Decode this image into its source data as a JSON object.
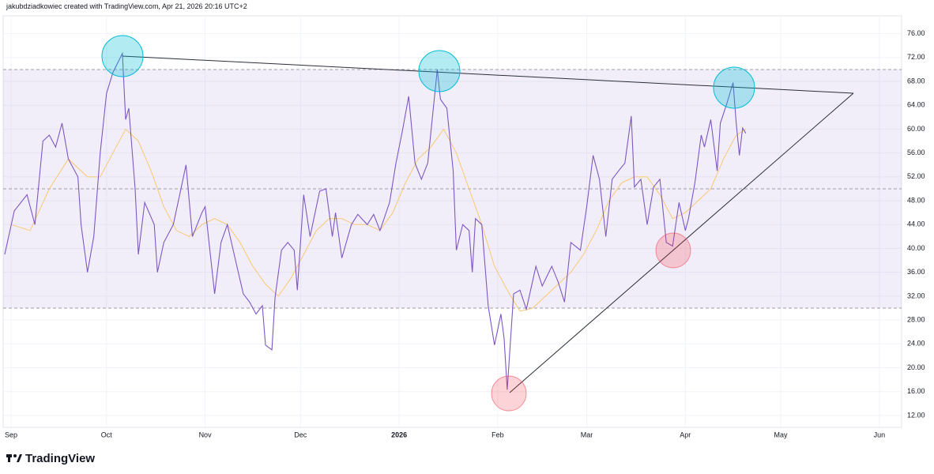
{
  "header": {
    "text": "jakubdziadkowiec created with TradingView.com, Apr 21, 2026 20:16 UTC+2"
  },
  "footer": {
    "logo": "TradingView"
  },
  "chart_data": {
    "type": "line",
    "xlim": [
      -2.5,
      280
    ],
    "ylim": [
      10,
      79
    ],
    "xticks": [
      {
        "value": 0,
        "label": "Sep"
      },
      {
        "value": 30,
        "label": "Oct"
      },
      {
        "value": 61,
        "label": "Nov"
      },
      {
        "value": 91,
        "label": "Dec"
      },
      {
        "value": 122,
        "label": "2026"
      },
      {
        "value": 153,
        "label": "Feb"
      },
      {
        "value": 181,
        "label": "Mar"
      },
      {
        "value": 212,
        "label": "Apr"
      },
      {
        "value": 242,
        "label": "May"
      },
      {
        "value": 273,
        "label": "Jun"
      }
    ],
    "yticks": [
      {
        "value": 12,
        "label": "12.00"
      },
      {
        "value": 16,
        "label": "16.00"
      },
      {
        "value": 20,
        "label": "20.00"
      },
      {
        "value": 24,
        "label": "24.00"
      },
      {
        "value": 28,
        "label": "28.00"
      },
      {
        "value": 32,
        "label": "32.00"
      },
      {
        "value": 36,
        "label": "36.00"
      },
      {
        "value": 40,
        "label": "40.00"
      },
      {
        "value": 44,
        "label": "44.00"
      },
      {
        "value": 48,
        "label": "48.00"
      },
      {
        "value": 52,
        "label": "52.00"
      },
      {
        "value": 56,
        "label": "56.00"
      },
      {
        "value": 60,
        "label": "60.00"
      },
      {
        "value": 64,
        "label": "64.00"
      },
      {
        "value": 68,
        "label": "68.00"
      },
      {
        "value": 72,
        "label": "72.00"
      },
      {
        "value": 76,
        "label": "76.00"
      }
    ],
    "levels": {
      "upper": 70,
      "middle": 50,
      "lower": 30
    },
    "band_color": "#7e57c2",
    "series": [
      {
        "color": "#7e57c2",
        "x": [
          -2,
          1,
          5,
          7.5,
          10,
          12,
          14,
          16,
          18,
          21,
          22,
          24,
          26,
          28,
          30,
          32,
          35,
          36,
          37,
          39,
          40,
          42,
          45,
          46,
          48,
          51,
          53,
          55,
          57,
          60,
          61,
          64,
          66,
          68,
          71,
          73,
          75,
          77,
          79,
          80,
          82,
          83,
          85,
          87,
          89,
          90,
          92,
          94,
          97,
          99,
          101,
          102,
          104,
          107,
          109,
          112,
          114,
          116,
          119,
          121,
          123,
          125,
          127,
          129,
          131,
          134,
          135,
          137,
          139,
          140,
          142,
          144,
          145,
          146,
          148,
          150,
          152,
          154,
          155,
          156,
          158,
          160,
          162,
          165,
          167,
          170,
          172,
          174,
          176,
          179,
          181,
          183,
          185,
          187,
          189,
          191,
          193,
          195,
          196,
          198,
          200,
          202,
          204,
          206,
          208,
          210,
          212,
          213,
          215,
          217,
          218,
          220,
          222,
          223,
          225,
          227,
          228,
          229,
          230,
          231
        ],
        "values": [
          39,
          46.3,
          49,
          44,
          58,
          59,
          57,
          61,
          55,
          52,
          44,
          36,
          42,
          56,
          66,
          69.5,
          72.7,
          61.6,
          63.5,
          50,
          39,
          47.7,
          44,
          36,
          41,
          44,
          49,
          54,
          42,
          46,
          47,
          32.4,
          41,
          44,
          37,
          32.4,
          31,
          29,
          30.4,
          23.8,
          23,
          31.8,
          39.7,
          41,
          39.7,
          33,
          49,
          42,
          49.6,
          50,
          42,
          46,
          38.4,
          44,
          45.7,
          44,
          45.7,
          43,
          47.7,
          54.3,
          59.6,
          65.5,
          54.3,
          51.6,
          54.3,
          70,
          65,
          63.5,
          53,
          39.7,
          44,
          43,
          36,
          45,
          44,
          30.4,
          23.8,
          29,
          25,
          16.3,
          32.4,
          33,
          29.8,
          37,
          33.7,
          37,
          34.4,
          31,
          41,
          39.7,
          47,
          55.6,
          51.6,
          42,
          51.6,
          53,
          54.3,
          62.2,
          50.3,
          51.6,
          44,
          50.3,
          51.6,
          41,
          40.4,
          47.7,
          43,
          45,
          51,
          59,
          57,
          61.6,
          53,
          61,
          64.2,
          67.8,
          61,
          55.6,
          60.2,
          59.3
        ]
      },
      {
        "color": "#f7c873",
        "x": [
          0,
          6,
          12,
          18,
          24,
          28,
          32,
          36,
          40,
          44,
          48,
          52,
          56,
          60,
          64,
          68,
          72,
          76,
          80,
          84,
          88,
          92,
          96,
          100,
          104,
          108,
          112,
          116,
          120,
          124,
          128,
          132,
          136,
          140,
          144,
          148,
          152,
          156,
          160,
          164,
          168,
          172,
          176,
          180,
          184,
          188,
          192,
          196,
          200,
          204,
          208,
          212,
          216,
          220,
          224,
          228,
          231
        ],
        "values": [
          44,
          43,
          50,
          55,
          52,
          52,
          56,
          60,
          58,
          53,
          47,
          43,
          42,
          44,
          45,
          44,
          41,
          37,
          34,
          32,
          35,
          39,
          43,
          45,
          45,
          44,
          44,
          43,
          46,
          51,
          55,
          57,
          60,
          56,
          50,
          44,
          37,
          33,
          29.5,
          30,
          32,
          34,
          36,
          39,
          43,
          48,
          51,
          52,
          52,
          49,
          45,
          46,
          48,
          50,
          55,
          59,
          60
        ]
      }
    ]
  }
}
